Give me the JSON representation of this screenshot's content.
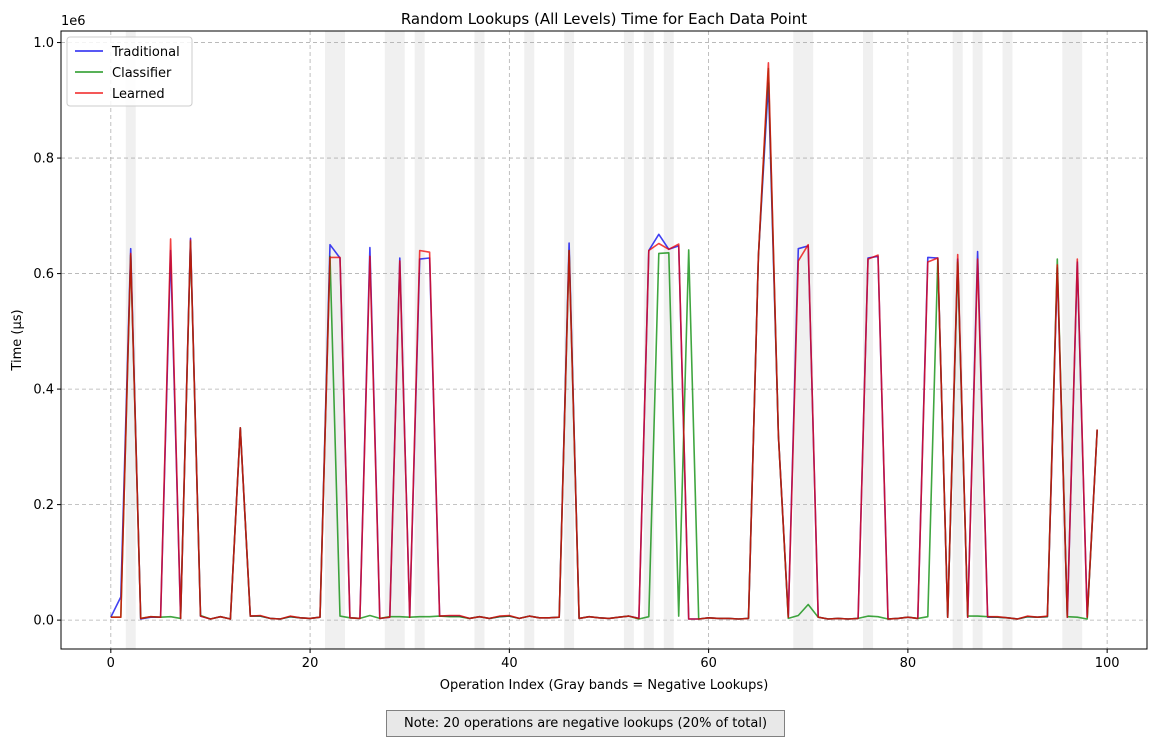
{
  "chart_data": {
    "type": "line",
    "title": "Random Lookups (All Levels) Time for Each Data Point",
    "xlabel": "Operation Index (Gray bands = Negative Lookups)",
    "ylabel": "Time (µs)",
    "y_offset_label": "1e6",
    "xlim": [
      -5,
      104
    ],
    "ylim": [
      -0.05,
      1.02
    ],
    "x_ticks": [
      0,
      20,
      40,
      60,
      80,
      100
    ],
    "y_ticks": [
      0.0,
      0.2,
      0.4,
      0.6,
      0.8,
      1.0
    ],
    "x_tick_labels": [
      "0",
      "20",
      "40",
      "60",
      "80",
      "100"
    ],
    "y_tick_labels": [
      "0.0",
      "0.2",
      "0.4",
      "0.6",
      "0.8",
      "1.0"
    ],
    "grid": true,
    "legend_position": "top-left",
    "negative_lookup_indices": [
      2,
      22,
      23,
      28,
      29,
      31,
      37,
      42,
      46,
      52,
      54,
      56,
      69,
      70,
      76,
      85,
      87,
      90,
      96,
      97
    ],
    "series": [
      {
        "name": "Traditional",
        "color": "#0000ee",
        "values": [
          0.005,
          0.04,
          0.643,
          0.002,
          0.005,
          0.005,
          0.64,
          0.003,
          0.661,
          0.007,
          0.002,
          0.006,
          0.002,
          0.333,
          0.007,
          0.007,
          0.003,
          0.002,
          0.006,
          0.004,
          0.003,
          0.005,
          0.65,
          0.627,
          0.004,
          0.003,
          0.645,
          0.003,
          0.005,
          0.627,
          0.005,
          0.625,
          0.627,
          0.007,
          0.007,
          0.007,
          0.003,
          0.006,
          0.003,
          0.006,
          0.007,
          0.003,
          0.007,
          0.004,
          0.004,
          0.005,
          0.653,
          0.003,
          0.006,
          0.004,
          0.003,
          0.005,
          0.007,
          0.003,
          0.64,
          0.668,
          0.642,
          0.648,
          0.002,
          0.002,
          0.004,
          0.003,
          0.003,
          0.002,
          0.003,
          0.63,
          0.93,
          0.32,
          0.005,
          0.643,
          0.648,
          0.005,
          0.002,
          0.003,
          0.002,
          0.003,
          0.627,
          0.63,
          0.002,
          0.003,
          0.005,
          0.003,
          0.628,
          0.627,
          0.005,
          0.625,
          0.005,
          0.638,
          0.005,
          0.005,
          0.004,
          0.002,
          0.006,
          0.005,
          0.006,
          0.61,
          0.005,
          0.62,
          0.005,
          0.33
        ]
      },
      {
        "name": "Classifier",
        "color": "#008800",
        "values": [
          0.005,
          0.005,
          0.632,
          0.003,
          0.006,
          0.005,
          0.006,
          0.003,
          0.655,
          0.008,
          0.002,
          0.006,
          0.002,
          0.333,
          0.007,
          0.007,
          0.003,
          0.002,
          0.006,
          0.004,
          0.003,
          0.005,
          0.63,
          0.007,
          0.004,
          0.003,
          0.008,
          0.003,
          0.006,
          0.006,
          0.005,
          0.006,
          0.006,
          0.007,
          0.006,
          0.006,
          0.003,
          0.006,
          0.003,
          0.006,
          0.007,
          0.003,
          0.007,
          0.004,
          0.004,
          0.005,
          0.64,
          0.003,
          0.006,
          0.004,
          0.003,
          0.005,
          0.007,
          0.002,
          0.006,
          0.635,
          0.636,
          0.007,
          0.641,
          0.002,
          0.004,
          0.003,
          0.003,
          0.002,
          0.003,
          0.63,
          0.955,
          0.32,
          0.003,
          0.008,
          0.027,
          0.005,
          0.002,
          0.003,
          0.002,
          0.003,
          0.007,
          0.006,
          0.002,
          0.003,
          0.005,
          0.003,
          0.006,
          0.625,
          0.005,
          0.62,
          0.007,
          0.007,
          0.006,
          0.005,
          0.004,
          0.002,
          0.006,
          0.005,
          0.006,
          0.625,
          0.006,
          0.005,
          0.002,
          0.33
        ]
      },
      {
        "name": "Learned",
        "color": "#ee0000",
        "values": [
          0.005,
          0.005,
          0.635,
          0.003,
          0.006,
          0.005,
          0.66,
          0.003,
          0.658,
          0.007,
          0.002,
          0.006,
          0.002,
          0.333,
          0.007,
          0.008,
          0.003,
          0.002,
          0.007,
          0.004,
          0.003,
          0.005,
          0.628,
          0.628,
          0.004,
          0.003,
          0.63,
          0.003,
          0.005,
          0.622,
          0.005,
          0.64,
          0.637,
          0.007,
          0.008,
          0.008,
          0.003,
          0.006,
          0.003,
          0.007,
          0.008,
          0.003,
          0.007,
          0.004,
          0.004,
          0.005,
          0.64,
          0.003,
          0.006,
          0.004,
          0.003,
          0.005,
          0.007,
          0.003,
          0.64,
          0.652,
          0.642,
          0.651,
          0.002,
          0.002,
          0.004,
          0.003,
          0.003,
          0.002,
          0.003,
          0.63,
          0.965,
          0.32,
          0.005,
          0.622,
          0.65,
          0.005,
          0.002,
          0.003,
          0.002,
          0.003,
          0.625,
          0.632,
          0.002,
          0.003,
          0.005,
          0.003,
          0.62,
          0.627,
          0.005,
          0.633,
          0.005,
          0.625,
          0.006,
          0.006,
          0.004,
          0.002,
          0.007,
          0.005,
          0.007,
          0.615,
          0.005,
          0.625,
          0.005,
          0.33
        ]
      }
    ],
    "note": "Note: 20 operations are negative lookups (20% of total)"
  }
}
